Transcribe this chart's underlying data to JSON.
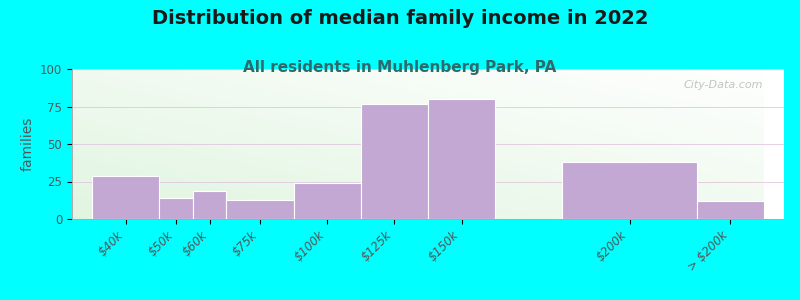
{
  "title": "Distribution of median family income in 2022",
  "subtitle": "All residents in Muhlenberg Park, PA",
  "ylabel": "families",
  "background_color": "#00FFFF",
  "bar_color": "#C4A8D4",
  "bar_edge_color": "#ffffff",
  "categories": [
    "$40k",
    "$50k",
    "$60k",
    "$75k",
    "$100k",
    "$125k",
    "$150k",
    "$200k",
    "> $200k"
  ],
  "values": [
    29,
    14,
    19,
    13,
    24,
    77,
    80,
    38,
    12
  ],
  "positions": [
    0,
    1,
    1.5,
    2,
    3,
    4,
    5,
    7,
    9
  ],
  "widths": [
    1,
    0.5,
    0.5,
    1,
    1,
    1,
    1,
    2,
    1
  ],
  "ylim": [
    0,
    100
  ],
  "yticks": [
    0,
    25,
    50,
    75,
    100
  ],
  "watermark": "City-Data.com",
  "title_fontsize": 14,
  "subtitle_fontsize": 11,
  "ylabel_fontsize": 10,
  "tick_fontsize": 8.5
}
